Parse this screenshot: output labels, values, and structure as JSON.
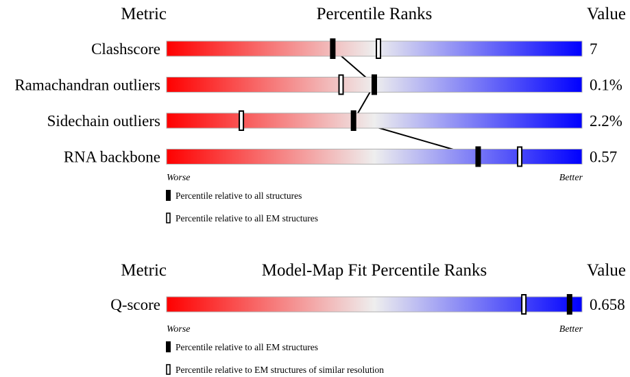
{
  "chart_data": [
    {
      "type": "percentile-ranks",
      "header": {
        "metric": "Metric",
        "title": "Percentile Ranks",
        "value": "Value"
      },
      "scale": {
        "worse_label": "Worse",
        "better_label": "Better",
        "range": [
          0,
          100
        ]
      },
      "gradient_colors": [
        "#ff0000",
        "#eeeeee",
        "#0000ff"
      ],
      "rows": [
        {
          "label": "Clashscore",
          "value": "7",
          "all_percentile": 40,
          "em_percentile": 51
        },
        {
          "label": "Ramachandran outliers",
          "value": "0.1%",
          "all_percentile": 50,
          "em_percentile": 42
        },
        {
          "label": "Sidechain outliers",
          "value": "2.2%",
          "all_percentile": 45,
          "em_percentile": 18
        },
        {
          "label": "RNA backbone",
          "value": "0.57",
          "all_percentile": 75,
          "em_percentile": 85
        }
      ],
      "connector": "all_percentile",
      "legend": [
        {
          "marker": "filled",
          "text": "Percentile relative to all structures"
        },
        {
          "marker": "open",
          "text": "Percentile relative to all EM structures"
        }
      ]
    },
    {
      "type": "percentile-ranks",
      "header": {
        "metric": "Metric",
        "title": "Model-Map Fit Percentile Ranks",
        "value": "Value"
      },
      "scale": {
        "worse_label": "Worse",
        "better_label": "Better",
        "range": [
          0,
          100
        ]
      },
      "gradient_colors": [
        "#ff0000",
        "#eeeeee",
        "#0000ff"
      ],
      "rows": [
        {
          "label": "Q-score",
          "value": "0.658",
          "all_percentile": 97,
          "em_percentile": 86
        }
      ],
      "legend": [
        {
          "marker": "filled",
          "text": "Percentile relative to all EM structures"
        },
        {
          "marker": "open",
          "text": "Percentile relative to EM structures of similar resolution"
        }
      ]
    }
  ]
}
